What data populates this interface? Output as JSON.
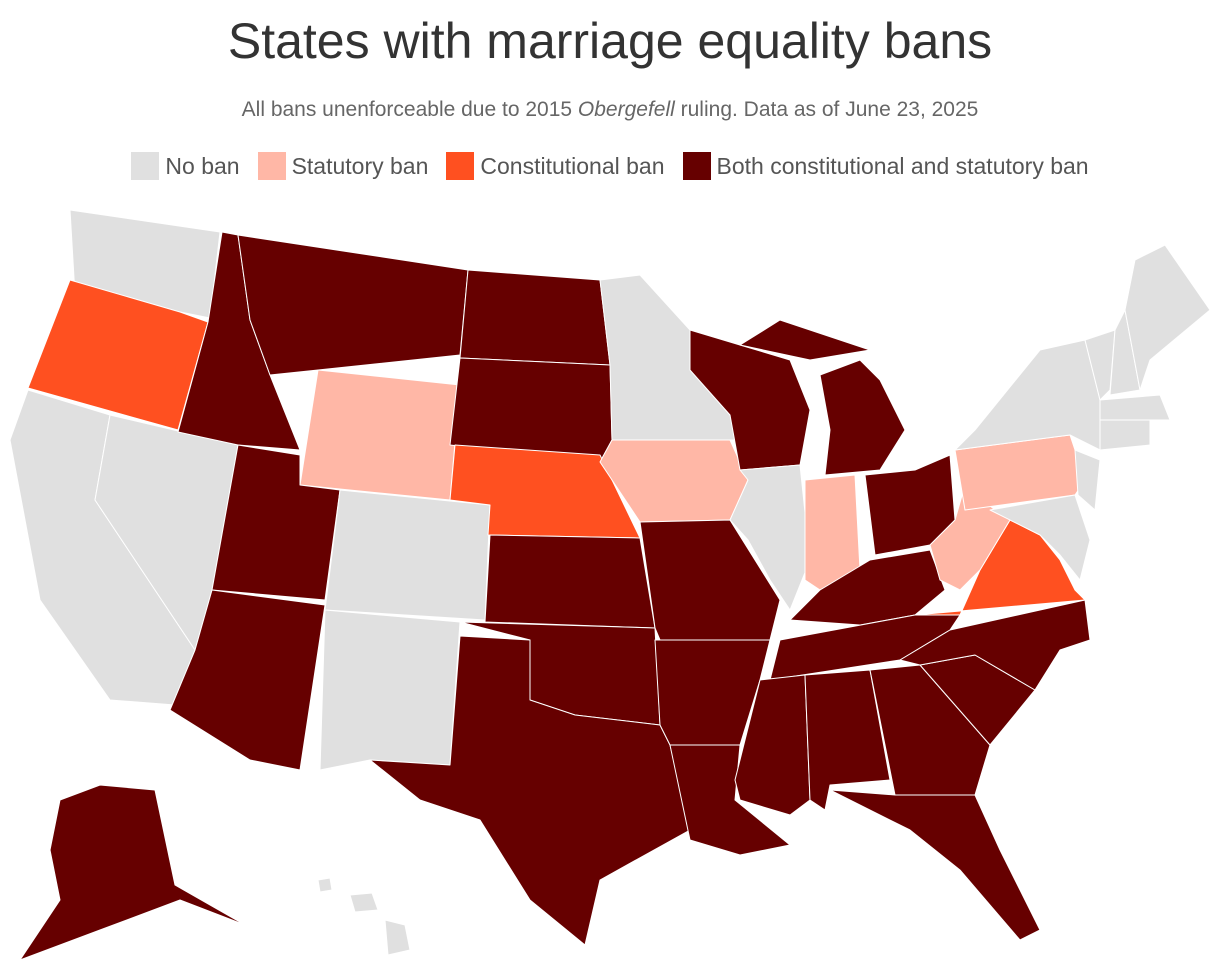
{
  "header": {
    "title": "States with marriage equality bans",
    "subtitle": [
      "All bans unenforceable due to 2015 ",
      "Obergefell",
      " ruling. Data as of June 23, 2025"
    ]
  },
  "legend": {
    "items": [
      {
        "label": "No ban",
        "color": "#e0e0e0"
      },
      {
        "label": "Statutory ban",
        "color": "#ffb7a6"
      },
      {
        "label": "Constitutional ban",
        "color": "#ff5020"
      },
      {
        "label": "Both constitutional and statutory ban",
        "color": "#660000"
      }
    ]
  },
  "regions": [
    0,
    2,
    0,
    0,
    3,
    3,
    1,
    3,
    3,
    0,
    0,
    3,
    3,
    2,
    3,
    3,
    3,
    0,
    1,
    3,
    3,
    3,
    3,
    0,
    3,
    1,
    3,
    3,
    3,
    3,
    3,
    3,
    3,
    3,
    3,
    2,
    1,
    1,
    0,
    0,
    0,
    0,
    0,
    0,
    0,
    0,
    3,
    0,
    0,
    0
  ]
}
